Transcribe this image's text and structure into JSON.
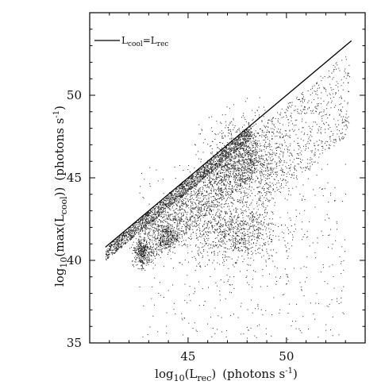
{
  "chart_data": {
    "type": "scatter",
    "title": "",
    "xlabel": {
      "prefix": "log",
      "sub": "10",
      "open": "(L",
      "var_sub": "rec",
      "close": ")",
      "units": "(photons s",
      "units_sup": "-1",
      "units_close": ")"
    },
    "ylabel": {
      "prefix": "log",
      "sub": "10",
      "open": "(max(L",
      "var_sub": "cool",
      "close": "))",
      "units": "(photons s",
      "units_sup": "-1",
      "units_close": ")"
    },
    "xlim": [
      40,
      54
    ],
    "ylim": [
      35,
      55
    ],
    "x_ticks": [
      45,
      50
    ],
    "y_ticks": [
      35,
      40,
      45,
      50
    ],
    "x_tick_labels": [
      "45",
      "50"
    ],
    "y_tick_labels": [
      "35",
      "40",
      "45",
      "50"
    ],
    "grid": false,
    "legend": {
      "placement": "top-left",
      "entries": [
        {
          "label_parts": [
            "L",
            "cool",
            "=L",
            "rec"
          ]
        }
      ]
    },
    "reference_line": {
      "name": "L_cool = L_rec",
      "x": [
        40.8,
        53.3
      ],
      "y": [
        40.8,
        53.3
      ]
    },
    "point_clouds": [
      {
        "name": "main-band-upper",
        "x_range": [
          40.8,
          48.2
        ],
        "y_offset_range": [
          -0.8,
          0.0
        ],
        "n": 1800
      },
      {
        "name": "main-band-lower",
        "x_range": [
          42.5,
          48.5
        ],
        "y_offset_range": [
          -3.2,
          -0.6
        ],
        "n": 1600
      },
      {
        "name": "lobe-low-1",
        "center": [
          42.6,
          40.6
        ],
        "spread": [
          0.25,
          0.4
        ],
        "n": 250
      },
      {
        "name": "lobe-low-2",
        "center": [
          43.9,
          41.4
        ],
        "spread": [
          0.3,
          0.4
        ],
        "n": 220
      },
      {
        "name": "cluster-mid",
        "center": [
          47.2,
          41.8
        ],
        "spread": [
          1.2,
          0.9
        ],
        "n": 900
      },
      {
        "name": "plume-mid",
        "center": [
          47.8,
          46.0
        ],
        "spread": [
          1.0,
          1.4
        ],
        "n": 900
      },
      {
        "name": "tail-right",
        "x_range": [
          48.5,
          53.2
        ],
        "y_offset_range": [
          -5.5,
          -0.5
        ],
        "n": 700
      },
      {
        "name": "sparse-scatter",
        "x_range": [
          42.5,
          53.0
        ],
        "y_range": [
          35.2,
          46.0
        ],
        "n": 500
      }
    ]
  }
}
